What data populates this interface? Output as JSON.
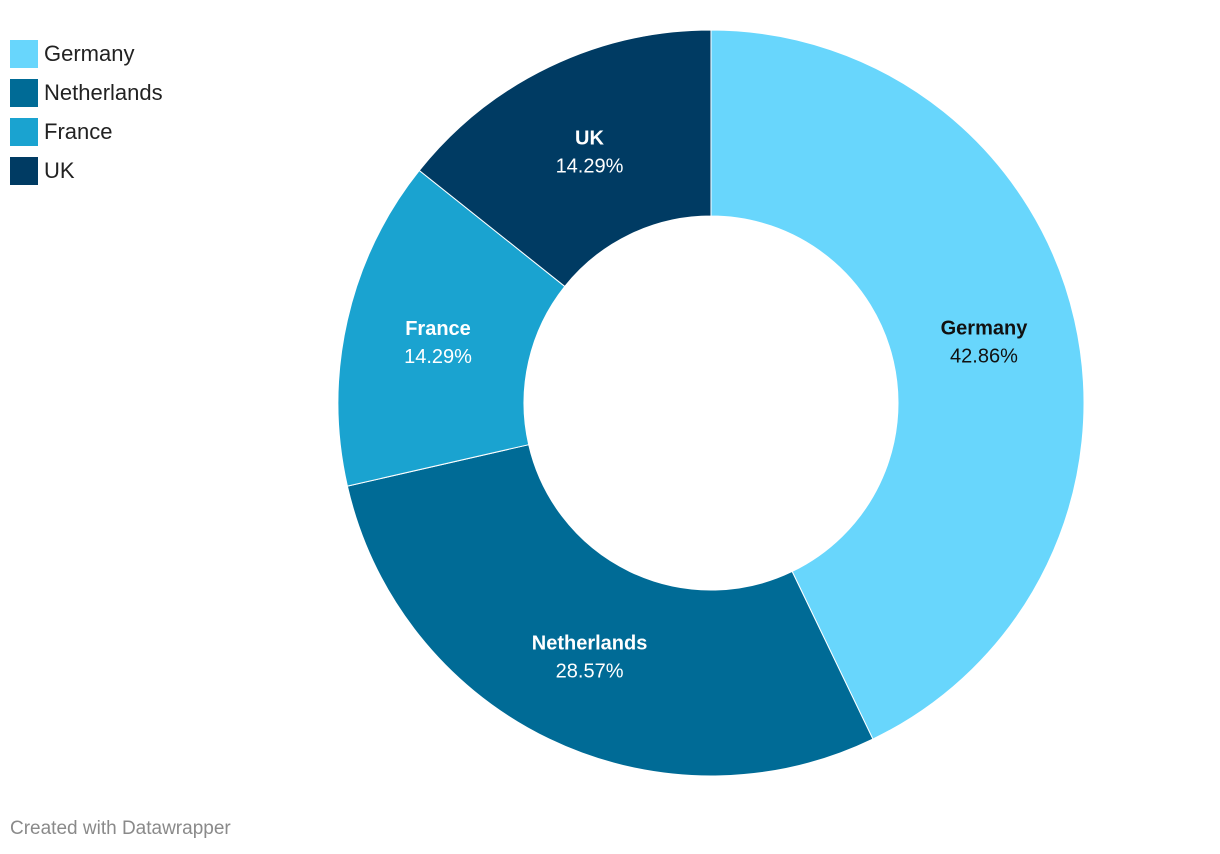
{
  "chart_data": {
    "type": "pie",
    "variant": "donut",
    "title": "",
    "categories": [
      "Germany",
      "Netherlands",
      "France",
      "UK"
    ],
    "values": [
      42.86,
      28.57,
      14.29,
      14.29
    ],
    "value_labels": [
      "42.86%",
      "28.57%",
      "14.29%",
      "14.29%"
    ],
    "colors": [
      "#68d6fc",
      "#006b96",
      "#1aa3d0",
      "#003b63"
    ],
    "label_colors": [
      "#111111",
      "#ffffff",
      "#ffffff",
      "#ffffff"
    ],
    "legend": {
      "position": "top-left",
      "entries": [
        "Germany",
        "Netherlands",
        "France",
        "UK"
      ]
    }
  },
  "footer": {
    "credit": "Created with Datawrapper"
  }
}
